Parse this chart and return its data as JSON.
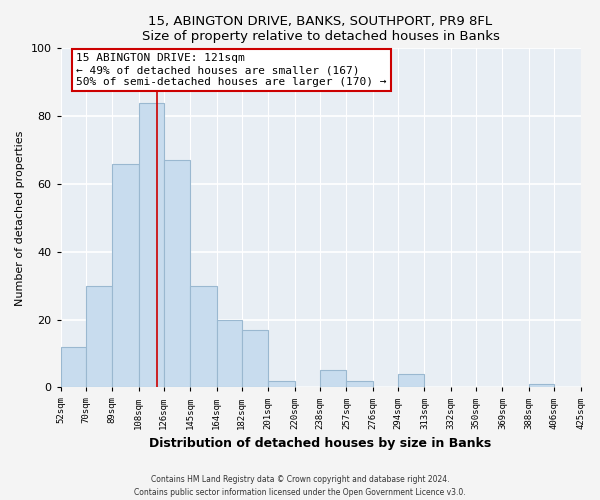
{
  "title1": "15, ABINGTON DRIVE, BANKS, SOUTHPORT, PR9 8FL",
  "title2": "Size of property relative to detached houses in Banks",
  "xlabel": "Distribution of detached houses by size in Banks",
  "ylabel": "Number of detached properties",
  "bar_color": "#c8dcee",
  "bar_edge_color": "#9ab8d0",
  "highlight_color": "#cc0000",
  "bins": [
    52,
    70,
    89,
    108,
    126,
    145,
    164,
    182,
    201,
    220,
    238,
    257,
    276,
    294,
    313,
    332,
    350,
    369,
    388,
    406,
    425
  ],
  "bin_labels": [
    "52sqm",
    "70sqm",
    "89sqm",
    "108sqm",
    "126sqm",
    "145sqm",
    "164sqm",
    "182sqm",
    "201sqm",
    "220sqm",
    "238sqm",
    "257sqm",
    "276sqm",
    "294sqm",
    "313sqm",
    "332sqm",
    "350sqm",
    "369sqm",
    "388sqm",
    "406sqm",
    "425sqm"
  ],
  "counts": [
    12,
    30,
    66,
    84,
    67,
    30,
    20,
    17,
    2,
    0,
    5,
    2,
    0,
    4,
    0,
    0,
    0,
    0,
    1,
    0,
    1
  ],
  "ylim": [
    0,
    100
  ],
  "annotation_title": "15 ABINGTON DRIVE: 121sqm",
  "annotation_line1": "← 49% of detached houses are smaller (167)",
  "annotation_line2": "50% of semi-detached houses are larger (170) →",
  "vline_x": 121,
  "bg_color": "#e8eef4",
  "fig_bg": "#f4f4f4",
  "footer1": "Contains HM Land Registry data © Crown copyright and database right 2024.",
  "footer2": "Contains public sector information licensed under the Open Government Licence v3.0."
}
